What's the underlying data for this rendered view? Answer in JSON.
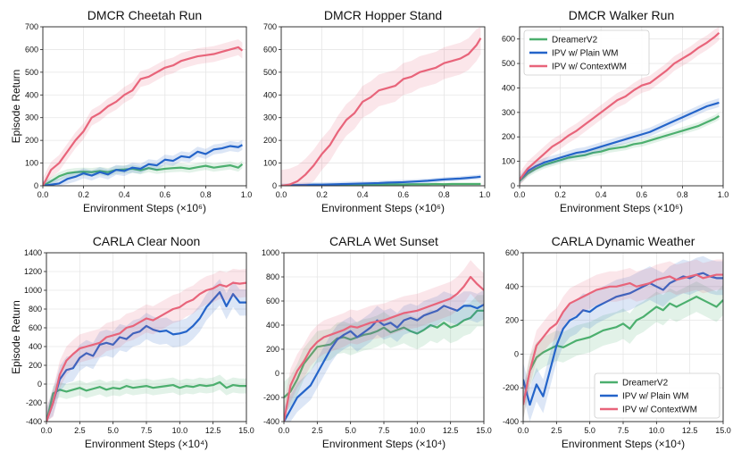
{
  "colors": {
    "dreamer": "#4caf6e",
    "plain": "#2464c9",
    "context": "#e8647a"
  },
  "legend_labels": [
    "DreamerV2",
    "IPV w/ Plain WM",
    "IPV w/ ContextWM"
  ],
  "chart_data": [
    {
      "type": "line",
      "title": "DMCR Cheetah Run",
      "xlabel": "Environment Steps (×10⁶)",
      "ylabel": "Episode Return",
      "xlim": [
        0,
        1.0
      ],
      "ylim": [
        0,
        700
      ],
      "xticks": [
        "0.0",
        "0.2",
        "0.4",
        "0.6",
        "0.8",
        "1.0"
      ],
      "xtick_values": [
        0,
        0.2,
        0.4,
        0.6,
        0.8,
        1.0
      ],
      "yticks": [
        "0",
        "100",
        "200",
        "300",
        "400",
        "500",
        "600",
        "700"
      ],
      "ytick_values": [
        0,
        100,
        200,
        300,
        400,
        500,
        600,
        700
      ],
      "legend": "none",
      "x": [
        0.0,
        0.04,
        0.08,
        0.12,
        0.16,
        0.2,
        0.24,
        0.28,
        0.32,
        0.36,
        0.4,
        0.44,
        0.48,
        0.52,
        0.56,
        0.6,
        0.64,
        0.68,
        0.72,
        0.76,
        0.8,
        0.84,
        0.88,
        0.92,
        0.96,
        0.98
      ],
      "series": [
        {
          "name": "DreamerV2",
          "band": 18,
          "values": [
            0,
            20,
            42,
            55,
            60,
            62,
            60,
            65,
            60,
            70,
            72,
            75,
            68,
            78,
            70,
            75,
            78,
            80,
            75,
            82,
            88,
            80,
            85,
            90,
            80,
            95
          ]
        },
        {
          "name": "IPV w/ Plain WM",
          "band": 22,
          "values": [
            0,
            5,
            10,
            30,
            40,
            55,
            45,
            60,
            50,
            70,
            65,
            80,
            75,
            95,
            90,
            115,
            110,
            130,
            125,
            150,
            140,
            160,
            165,
            175,
            170,
            180
          ]
        },
        {
          "name": "IPV w/ ContextWM",
          "band": 35,
          "values": [
            0,
            70,
            100,
            150,
            200,
            240,
            300,
            320,
            350,
            370,
            400,
            420,
            470,
            480,
            500,
            520,
            530,
            550,
            560,
            570,
            575,
            580,
            590,
            600,
            610,
            595
          ]
        }
      ]
    },
    {
      "type": "line",
      "title": "DMCR Hopper Stand",
      "xlabel": "Environment Steps (×10⁶)",
      "ylabel": "",
      "xlim": [
        0,
        1.0
      ],
      "ylim": [
        0,
        700
      ],
      "xticks": [
        "0.0",
        "0.2",
        "0.4",
        "0.6",
        "0.8",
        "1.0"
      ],
      "xtick_values": [
        0,
        0.2,
        0.4,
        0.6,
        0.8,
        1.0
      ],
      "yticks": [
        "0",
        "100",
        "200",
        "300",
        "400",
        "500",
        "600",
        "700"
      ],
      "ytick_values": [
        0,
        100,
        200,
        300,
        400,
        500,
        600,
        700
      ],
      "legend": "none",
      "x": [
        0.0,
        0.04,
        0.08,
        0.12,
        0.16,
        0.2,
        0.24,
        0.28,
        0.32,
        0.36,
        0.4,
        0.44,
        0.48,
        0.52,
        0.56,
        0.6,
        0.64,
        0.68,
        0.72,
        0.76,
        0.8,
        0.84,
        0.88,
        0.92,
        0.96,
        0.98
      ],
      "series": [
        {
          "name": "DreamerV2",
          "band": 6,
          "values": [
            0,
            2,
            3,
            3,
            4,
            4,
            5,
            5,
            5,
            6,
            5,
            6,
            6,
            6,
            7,
            6,
            7,
            7,
            7,
            8,
            7,
            8,
            8,
            8,
            8,
            8
          ]
        },
        {
          "name": "IPV w/ Plain WM",
          "band": 10,
          "values": [
            0,
            2,
            3,
            4,
            5,
            5,
            6,
            7,
            8,
            9,
            10,
            11,
            12,
            14,
            15,
            16,
            18,
            20,
            22,
            25,
            28,
            30,
            32,
            35,
            38,
            40
          ]
        },
        {
          "name": "IPV w/ ContextWM",
          "band": 70,
          "values": [
            0,
            5,
            20,
            50,
            90,
            140,
            180,
            240,
            290,
            320,
            370,
            390,
            420,
            430,
            440,
            470,
            480,
            500,
            510,
            520,
            540,
            550,
            560,
            580,
            620,
            650
          ]
        }
      ]
    },
    {
      "type": "line",
      "title": "DMCR Walker Run",
      "xlabel": "Environment Steps (×10⁶)",
      "ylabel": "",
      "xlim": [
        0,
        1.0
      ],
      "ylim": [
        0,
        650
      ],
      "xticks": [
        "0.0",
        "0.2",
        "0.4",
        "0.6",
        "0.8",
        "1.0"
      ],
      "xtick_values": [
        0,
        0.2,
        0.4,
        0.6,
        0.8,
        1.0
      ],
      "yticks": [
        "0",
        "100",
        "200",
        "300",
        "400",
        "500",
        "600"
      ],
      "ytick_values": [
        0,
        100,
        200,
        300,
        400,
        500,
        600
      ],
      "legend": "top-left",
      "x": [
        0.0,
        0.04,
        0.08,
        0.12,
        0.16,
        0.2,
        0.24,
        0.28,
        0.32,
        0.36,
        0.4,
        0.44,
        0.48,
        0.52,
        0.56,
        0.6,
        0.64,
        0.68,
        0.72,
        0.76,
        0.8,
        0.84,
        0.88,
        0.92,
        0.96,
        0.98
      ],
      "series": [
        {
          "name": "DreamerV2",
          "band": 15,
          "values": [
            20,
            50,
            70,
            85,
            95,
            105,
            115,
            120,
            125,
            135,
            140,
            150,
            155,
            160,
            170,
            175,
            185,
            195,
            205,
            215,
            225,
            235,
            245,
            260,
            275,
            285
          ]
        },
        {
          "name": "IPV w/ Plain WM",
          "band": 18,
          "values": [
            25,
            60,
            80,
            95,
            105,
            115,
            125,
            135,
            140,
            150,
            160,
            170,
            180,
            190,
            200,
            210,
            220,
            235,
            250,
            265,
            280,
            295,
            310,
            325,
            335,
            340
          ]
        },
        {
          "name": "IPV w/ ContextWM",
          "band": 30,
          "values": [
            25,
            70,
            100,
            130,
            160,
            180,
            205,
            225,
            250,
            275,
            300,
            325,
            350,
            365,
            390,
            410,
            420,
            445,
            470,
            500,
            520,
            540,
            565,
            585,
            610,
            625
          ]
        }
      ]
    },
    {
      "type": "line",
      "title": "CARLA Clear Noon",
      "xlabel": "Environment Steps (×10⁴)",
      "ylabel": "Episode Return",
      "xlim": [
        0,
        15
      ],
      "ylim": [
        -400,
        1400
      ],
      "xticks": [
        "0.0",
        "2.5",
        "5.0",
        "7.5",
        "10.0",
        "12.5",
        "15.0"
      ],
      "xtick_values": [
        0,
        2.5,
        5,
        7.5,
        10,
        12.5,
        15
      ],
      "yticks": [
        "-400",
        "-200",
        "0",
        "200",
        "400",
        "600",
        "800",
        "1000",
        "1200",
        "1400"
      ],
      "ytick_values": [
        -400,
        -200,
        0,
        200,
        400,
        600,
        800,
        1000,
        1200,
        1400
      ],
      "legend": "none",
      "x": [
        0.0,
        0.5,
        1.0,
        1.5,
        2.0,
        2.5,
        3.0,
        3.5,
        4.0,
        4.5,
        5.0,
        5.5,
        6.0,
        6.5,
        7.0,
        7.5,
        8.0,
        8.5,
        9.0,
        9.5,
        10.0,
        10.5,
        11.0,
        11.5,
        12.0,
        12.5,
        13.0,
        13.5,
        14.0,
        14.5,
        15.0
      ],
      "series": [
        {
          "name": "DreamerV2",
          "band": 80,
          "values": [
            -400,
            -100,
            -60,
            -80,
            -60,
            -40,
            -70,
            -50,
            -30,
            -60,
            -40,
            -50,
            -20,
            -40,
            -30,
            -20,
            -40,
            -30,
            -20,
            -10,
            -40,
            -20,
            -30,
            -10,
            -20,
            -10,
            20,
            -40,
            -10,
            -20,
            -20
          ]
        },
        {
          "name": "IPV w/ Plain WM",
          "band": 140,
          "values": [
            -400,
            -200,
            50,
            150,
            170,
            280,
            330,
            300,
            420,
            440,
            420,
            500,
            480,
            540,
            560,
            620,
            580,
            560,
            570,
            530,
            540,
            560,
            620,
            700,
            820,
            900,
            980,
            830,
            960,
            870,
            870
          ]
        },
        {
          "name": "IPV w/ ContextWM",
          "band": 150,
          "values": [
            -400,
            -200,
            100,
            250,
            320,
            380,
            400,
            420,
            440,
            500,
            520,
            540,
            600,
            620,
            660,
            700,
            680,
            720,
            760,
            800,
            820,
            870,
            900,
            960,
            1000,
            1020,
            1060,
            1040,
            1080,
            1070,
            1080
          ]
        }
      ]
    },
    {
      "type": "line",
      "title": "CARLA Wet Sunset",
      "xlabel": "Environment Steps (×10⁴)",
      "ylabel": "",
      "xlim": [
        0,
        15
      ],
      "ylim": [
        -400,
        1000
      ],
      "xticks": [
        "0.0",
        "2.5",
        "5.0",
        "7.5",
        "10.0",
        "12.5",
        "15.0"
      ],
      "xtick_values": [
        0,
        2.5,
        5,
        7.5,
        10,
        12.5,
        15
      ],
      "yticks": [
        "-400",
        "-200",
        "0",
        "200",
        "400",
        "600",
        "800",
        "1000"
      ],
      "ytick_values": [
        -400,
        -200,
        0,
        200,
        400,
        600,
        800,
        1000
      ],
      "legend": "none",
      "x": [
        0.0,
        0.5,
        1.0,
        1.5,
        2.0,
        2.5,
        3.0,
        3.5,
        4.0,
        4.5,
        5.0,
        5.5,
        6.0,
        6.5,
        7.0,
        7.5,
        8.0,
        8.5,
        9.0,
        9.5,
        10.0,
        10.5,
        11.0,
        11.5,
        12.0,
        12.5,
        13.0,
        13.5,
        14.0,
        14.5,
        15.0
      ],
      "series": [
        {
          "name": "DreamerV2",
          "band": 130,
          "values": [
            -200,
            -150,
            -50,
            80,
            150,
            220,
            230,
            240,
            290,
            300,
            280,
            300,
            320,
            330,
            350,
            380,
            340,
            360,
            380,
            350,
            330,
            360,
            400,
            380,
            420,
            380,
            400,
            440,
            460,
            520,
            520
          ]
        },
        {
          "name": "IPV w/ Plain WM",
          "band": 120,
          "values": [
            -400,
            -300,
            -200,
            -150,
            -100,
            0,
            100,
            200,
            280,
            320,
            350,
            300,
            340,
            380,
            440,
            400,
            420,
            380,
            440,
            460,
            440,
            480,
            500,
            520,
            560,
            540,
            520,
            560,
            560,
            540,
            570
          ]
        },
        {
          "name": "IPV w/ ContextWM",
          "band": 140,
          "values": [
            -400,
            -100,
            20,
            100,
            200,
            260,
            300,
            320,
            340,
            360,
            390,
            380,
            400,
            420,
            430,
            440,
            460,
            480,
            500,
            510,
            520,
            540,
            560,
            580,
            600,
            620,
            660,
            720,
            800,
            740,
            690
          ]
        }
      ]
    },
    {
      "type": "line",
      "title": "CARLA Dynamic Weather",
      "xlabel": "Environment Steps (×10⁴)",
      "ylabel": "",
      "xlim": [
        0,
        15
      ],
      "ylim": [
        -400,
        600
      ],
      "xticks": [
        "0.0",
        "2.5",
        "5.0",
        "7.5",
        "10.0",
        "12.5",
        "15.0"
      ],
      "xtick_values": [
        0,
        2.5,
        5,
        7.5,
        10,
        12.5,
        15
      ],
      "yticks": [
        "-400",
        "-200",
        "0",
        "200",
        "400",
        "600"
      ],
      "ytick_values": [
        -400,
        -200,
        0,
        200,
        400,
        600
      ],
      "legend": "bottom-right",
      "x": [
        0.0,
        0.5,
        1.0,
        1.5,
        2.0,
        2.5,
        3.0,
        3.5,
        4.0,
        4.5,
        5.0,
        5.5,
        6.0,
        6.5,
        7.0,
        7.5,
        8.0,
        8.5,
        9.0,
        9.5,
        10.0,
        10.5,
        11.0,
        11.5,
        12.0,
        12.5,
        13.0,
        13.5,
        14.0,
        14.5,
        15.0
      ],
      "series": [
        {
          "name": "DreamerV2",
          "band": 90,
          "values": [
            -300,
            -100,
            -20,
            10,
            30,
            50,
            40,
            60,
            80,
            90,
            100,
            120,
            140,
            150,
            160,
            180,
            150,
            200,
            220,
            250,
            280,
            260,
            300,
            280,
            300,
            320,
            340,
            320,
            300,
            280,
            320
          ]
        },
        {
          "name": "IPV w/ Plain WM",
          "band": 100,
          "values": [
            -150,
            -300,
            -180,
            -250,
            -100,
            50,
            150,
            200,
            220,
            260,
            250,
            280,
            300,
            320,
            340,
            350,
            360,
            380,
            400,
            420,
            400,
            380,
            420,
            440,
            460,
            450,
            470,
            480,
            460,
            450,
            450
          ]
        },
        {
          "name": "IPV w/ ContextWM",
          "band": 90,
          "values": [
            -300,
            -100,
            50,
            100,
            150,
            180,
            250,
            300,
            320,
            340,
            360,
            380,
            390,
            400,
            400,
            410,
            420,
            400,
            410,
            420,
            440,
            450,
            460,
            440,
            450,
            460,
            470,
            450,
            460,
            470,
            470
          ]
        }
      ]
    }
  ]
}
